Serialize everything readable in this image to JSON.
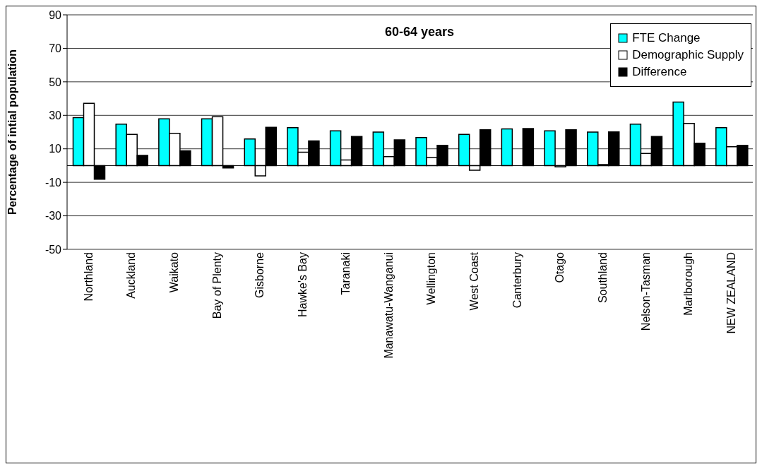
{
  "chart_data": {
    "type": "bar",
    "title": "60-64 years",
    "ylabel": "Percentage of intial population",
    "categories": [
      "Northland",
      "Auckland",
      "Waikato",
      "Bay of Plenty",
      "Gisborne",
      "Hawke's Bay",
      "Taranaki",
      "Manawatu-Wanganui",
      "Wellington",
      "West Coast",
      "Canterbury",
      "Otago",
      "Southland",
      "Nelson-Tasman",
      "Marlborough",
      "NEW ZEALAND"
    ],
    "series": [
      {
        "name": "FTE Change",
        "color": "#00ffff",
        "values": [
          28.6,
          24.7,
          27.9,
          27.9,
          15.9,
          22.6,
          20.7,
          20.0,
          16.7,
          18.6,
          21.9,
          20.7,
          20.0,
          24.7,
          37.9,
          22.6
        ]
      },
      {
        "name": "Demographic Supply",
        "color": "#ffffff",
        "values": [
          37.2,
          18.6,
          19.3,
          29.2,
          -6.1,
          8.0,
          3.3,
          5.3,
          4.8,
          -2.8,
          0,
          -0.8,
          0.6,
          7.2,
          25.2,
          11.3
        ]
      },
      {
        "name": "Difference",
        "color": "#000000",
        "values": [
          -8.1,
          6.1,
          8.8,
          -1.4,
          22.8,
          14.7,
          17.4,
          15.4,
          12.1,
          21.4,
          22.1,
          21.4,
          20.1,
          17.4,
          13.4,
          12.1
        ]
      }
    ],
    "ylim": [
      -50,
      90
    ],
    "yticks": [
      -50,
      -30,
      -10,
      10,
      30,
      50,
      70,
      90
    ],
    "grid": "y",
    "legend": "top right"
  }
}
